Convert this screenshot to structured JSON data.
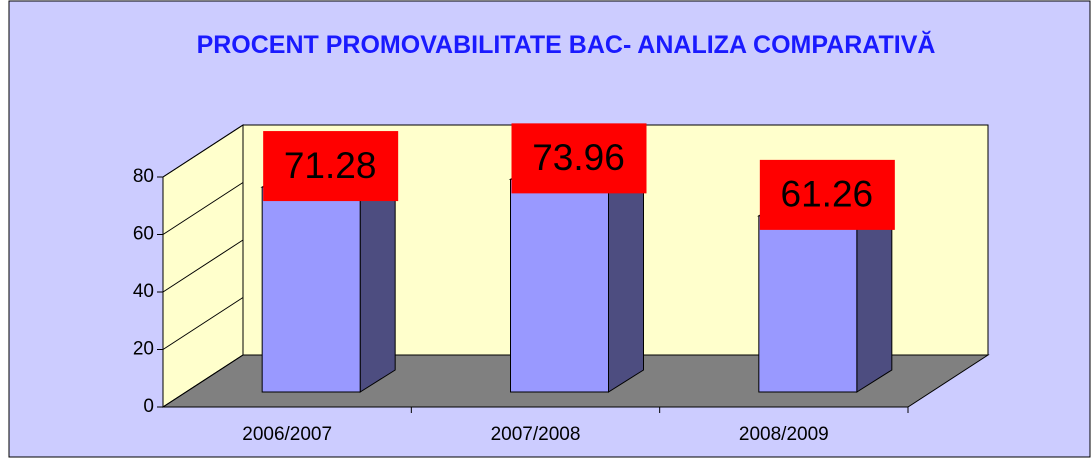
{
  "chart_data": {
    "type": "bar3d",
    "title": "PROCENT PROMOVABILITATE BAC- ANALIZA COMPARATIVĂ",
    "categories": [
      "2006/2007",
      "2007/2008",
      "2008/2009"
    ],
    "values": [
      71.28,
      73.96,
      61.26
    ],
    "color": "#9999ff",
    "ylim": [
      0,
      80
    ],
    "yticks": [
      0,
      20,
      40,
      60,
      80
    ]
  }
}
